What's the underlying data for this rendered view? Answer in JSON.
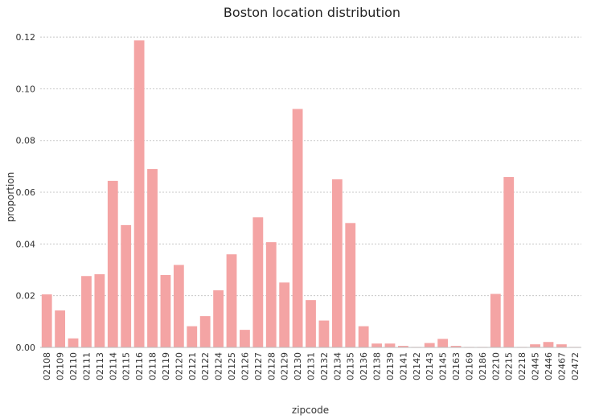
{
  "chart_data": {
    "type": "bar",
    "title": "Boston location distribution",
    "xlabel": "zipcode",
    "ylabel": "proportion",
    "ylim": [
      0,
      0.125
    ],
    "yticks": [
      "0.00",
      "0.02",
      "0.04",
      "0.06",
      "0.08",
      "0.10",
      "0.12"
    ],
    "grid": "horizontal dotted",
    "bar_color": "#f4a4a4",
    "categories": [
      "02108",
      "02109",
      "02110",
      "02111",
      "02113",
      "02114",
      "02115",
      "02116",
      "02118",
      "02119",
      "02120",
      "02121",
      "02122",
      "02124",
      "02125",
      "02126",
      "02127",
      "02128",
      "02129",
      "02130",
      "02131",
      "02132",
      "02134",
      "02135",
      "02136",
      "02138",
      "02139",
      "02141",
      "02142",
      "02143",
      "02145",
      "02163",
      "02169",
      "02186",
      "02210",
      "02215",
      "02218",
      "02445",
      "02446",
      "02467",
      "02472"
    ],
    "values": [
      0.0205,
      0.0143,
      0.0035,
      0.0276,
      0.0283,
      0.0644,
      0.0473,
      0.1187,
      0.069,
      0.028,
      0.0319,
      0.0082,
      0.0121,
      0.0221,
      0.036,
      0.0068,
      0.0503,
      0.0407,
      0.0251,
      0.0922,
      0.0183,
      0.0104,
      0.065,
      0.0481,
      0.0082,
      0.0015,
      0.0015,
      0.0006,
      0.0002,
      0.0017,
      0.0033,
      0.0006,
      0.0002,
      0.0002,
      0.0207,
      0.0659,
      0.0002,
      0.0012,
      0.0021,
      0.0012,
      0.0002
    ]
  }
}
